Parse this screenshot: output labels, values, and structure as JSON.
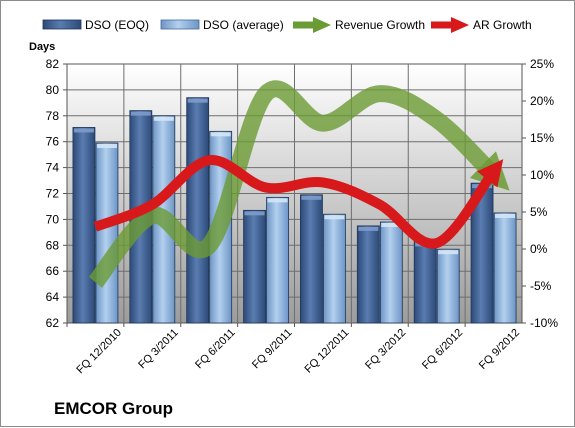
{
  "company": "EMCOR Group",
  "chart_data": {
    "type": "bar",
    "categories": [
      "FQ 12/2010",
      "FQ 3/2011",
      "FQ 6/2011",
      "FQ 9/2011",
      "FQ 12/2011",
      "FQ 3/2012",
      "FQ 6/2012",
      "FQ 9/2012"
    ],
    "ylabel": "Days",
    "ylim": [
      62,
      82
    ],
    "yticks": [
      62,
      64,
      66,
      68,
      70,
      72,
      74,
      76,
      78,
      80,
      82
    ],
    "y2lim": [
      -10,
      25
    ],
    "y2ticks": [
      "-10%",
      "-5%",
      "0%",
      "5%",
      "10%",
      "15%",
      "20%",
      "25%"
    ],
    "y2tick_values": [
      -10,
      -5,
      0,
      5,
      10,
      15,
      20,
      25
    ],
    "legend_position": "top",
    "grid": true,
    "bar_series": [
      {
        "name": "DSO (EOQ)",
        "values": [
          77.1,
          78.4,
          79.4,
          70.7,
          71.9,
          69.5,
          68.3,
          72.8
        ],
        "color": "#4a6796"
      },
      {
        "name": "DSO (average)",
        "values": [
          75.9,
          78.0,
          76.8,
          71.7,
          70.4,
          69.8,
          67.7,
          70.5
        ],
        "color": "#8eb3dc"
      }
    ],
    "line_series": [
      {
        "name": "Revenue Growth",
        "axis": "secondary",
        "values": [
          -4.5,
          4.5,
          0.5,
          21.0,
          17.0,
          21.0,
          17.5,
          10.0
        ],
        "color": "#6b9b35"
      },
      {
        "name": "AR Growth",
        "axis": "secondary",
        "values": [
          3.0,
          6.0,
          12.0,
          8.3,
          9.0,
          6.0,
          0.8,
          10.5
        ],
        "color": "#d7191c"
      }
    ]
  }
}
